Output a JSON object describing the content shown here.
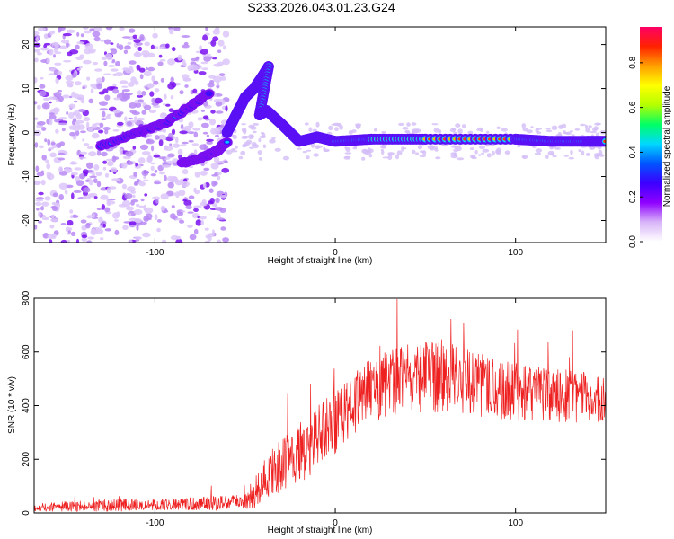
{
  "title": "S233.2026.043.01.23.G24",
  "chart_data": [
    {
      "type": "heatmap",
      "name": "spectrogram",
      "xlabel": "Height of straight line (km)",
      "ylabel": "Frequency (Hz)",
      "xlim": [
        -167,
        150
      ],
      "ylim": [
        -25,
        24
      ],
      "xticks": [
        -100,
        0,
        100
      ],
      "yticks": [
        -20,
        -10,
        0,
        10,
        20
      ],
      "colorbar": {
        "label": "Normalized spectral amplitude",
        "range": [
          0,
          0.96
        ],
        "ticks": [
          "0.0",
          "0.2",
          "0.4",
          "0.6",
          "0.8"
        ],
        "colors": [
          "#ffffff",
          "#d8b4f8",
          "#8f00ff",
          "#3c00ff",
          "#0055ff",
          "#00d8ff",
          "#00ff66",
          "#b4ff00",
          "#ffff00",
          "#ffa000",
          "#ff2200",
          "#ff0066"
        ]
      },
      "ridge_track": [
        {
          "x": -60,
          "y": 0
        },
        {
          "x": -55,
          "y": 4
        },
        {
          "x": -50,
          "y": 8
        },
        {
          "x": -45,
          "y": 10
        },
        {
          "x": -40,
          "y": 13
        },
        {
          "x": -37,
          "y": 15
        },
        {
          "x": -42,
          "y": 4
        },
        {
          "x": -38,
          "y": 5
        },
        {
          "x": -30,
          "y": 2
        },
        {
          "x": -25,
          "y": 0
        },
        {
          "x": -20,
          "y": -2
        },
        {
          "x": -10,
          "y": -1
        },
        {
          "x": 0,
          "y": -2
        },
        {
          "x": 20,
          "y": -1.5
        },
        {
          "x": 50,
          "y": -1.5
        },
        {
          "x": 100,
          "y": -1.5
        },
        {
          "x": 120,
          "y": -2
        },
        {
          "x": 140,
          "y": -2
        },
        {
          "x": 150,
          "y": -2
        }
      ],
      "secondary_track": [
        {
          "x": -130,
          "y": -3
        },
        {
          "x": -110,
          "y": 0
        },
        {
          "x": -95,
          "y": 2
        },
        {
          "x": -80,
          "y": 6
        },
        {
          "x": -70,
          "y": 9
        }
      ],
      "lower_track": [
        {
          "x": -85,
          "y": -7
        },
        {
          "x": -75,
          "y": -6
        },
        {
          "x": -65,
          "y": -4
        },
        {
          "x": -60,
          "y": -2
        }
      ]
    },
    {
      "type": "line",
      "name": "snr",
      "xlabel": "Height of straight line (km)",
      "ylabel": "SNR (10 * v/v)",
      "xlim": [
        -167,
        150
      ],
      "ylim": [
        0,
        800
      ],
      "xticks": [
        -100,
        0,
        100
      ],
      "yticks": [
        0,
        200,
        400,
        600,
        800
      ],
      "color": "#ee2020",
      "envelope": [
        {
          "x": -167,
          "mean": 20,
          "amp": 15
        },
        {
          "x": -120,
          "mean": 30,
          "amp": 25
        },
        {
          "x": -100,
          "mean": 30,
          "amp": 20
        },
        {
          "x": -50,
          "mean": 40,
          "amp": 30
        },
        {
          "x": -45,
          "mean": 70,
          "amp": 60
        },
        {
          "x": -40,
          "mean": 130,
          "amp": 80
        },
        {
          "x": -20,
          "mean": 220,
          "amp": 120
        },
        {
          "x": 0,
          "mean": 340,
          "amp": 120
        },
        {
          "x": 20,
          "mean": 460,
          "amp": 120
        },
        {
          "x": 40,
          "mean": 500,
          "amp": 130
        },
        {
          "x": 60,
          "mean": 510,
          "amp": 140
        },
        {
          "x": 80,
          "mean": 480,
          "amp": 120
        },
        {
          "x": 100,
          "mean": 450,
          "amp": 110
        },
        {
          "x": 120,
          "mean": 440,
          "amp": 100
        },
        {
          "x": 150,
          "mean": 420,
          "amp": 100
        }
      ]
    }
  ]
}
